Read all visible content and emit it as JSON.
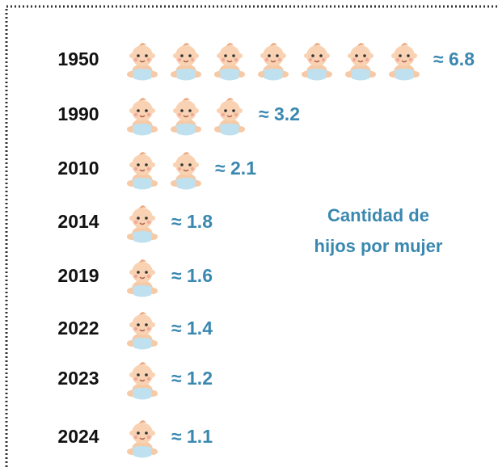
{
  "chart_data": {
    "type": "pictogram",
    "categories": [
      "1950",
      "1990",
      "2010",
      "2014",
      "2019",
      "2022",
      "2023",
      "2024"
    ],
    "values": [
      6.8,
      3.2,
      2.1,
      1.8,
      1.6,
      1.4,
      1.2,
      1.1
    ],
    "value_labels": [
      "≈ 6.8",
      "≈ 3.2",
      "≈ 2.1",
      "≈ 1.8",
      "≈ 1.6",
      "≈ 1.4",
      "≈ 1.2",
      "≈ 1.1"
    ],
    "icons": [
      7,
      3,
      2,
      1,
      1,
      1,
      1,
      1
    ],
    "annotation": [
      "Cantidad de",
      "hijos por mujer"
    ],
    "color": "#3a88b0"
  }
}
